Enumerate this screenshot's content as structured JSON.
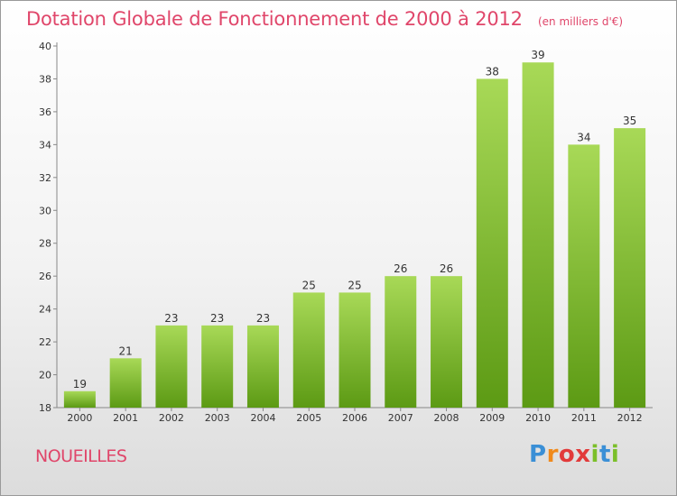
{
  "header": {
    "title": "Dotation Globale de Fonctionnement de 2000 à 2012",
    "unit": "(en milliers d'€)"
  },
  "commune": "NOUEILLES",
  "logo": {
    "letters": [
      "P",
      "r",
      "o",
      "x",
      "i",
      "t",
      "i"
    ],
    "colors": [
      "#3a8fd6",
      "#f08a1c",
      "#e23a3a",
      "#e23a3a",
      "#7bbf2a",
      "#3a8fd6",
      "#7bbf2a"
    ]
  },
  "colors": {
    "bar_light": "#a8d957",
    "bar_dark": "#5c9a14",
    "title": "#e0466a"
  },
  "chart_data": {
    "type": "bar",
    "title": "Dotation Globale de Fonctionnement de 2000 à 2012",
    "subtitle": "(en milliers d'€)",
    "categories": [
      "2000",
      "2001",
      "2002",
      "2003",
      "2004",
      "2005",
      "2006",
      "2007",
      "2008",
      "2009",
      "2010",
      "2011",
      "2012"
    ],
    "values": [
      19,
      21,
      23,
      23,
      23,
      25,
      25,
      26,
      26,
      38,
      39,
      34,
      35
    ],
    "ylim": [
      18,
      40
    ],
    "yticks": [
      "18",
      "20",
      "22",
      "24",
      "26",
      "28",
      "30",
      "32",
      "34",
      "36",
      "38",
      "40"
    ],
    "grid": false
  }
}
